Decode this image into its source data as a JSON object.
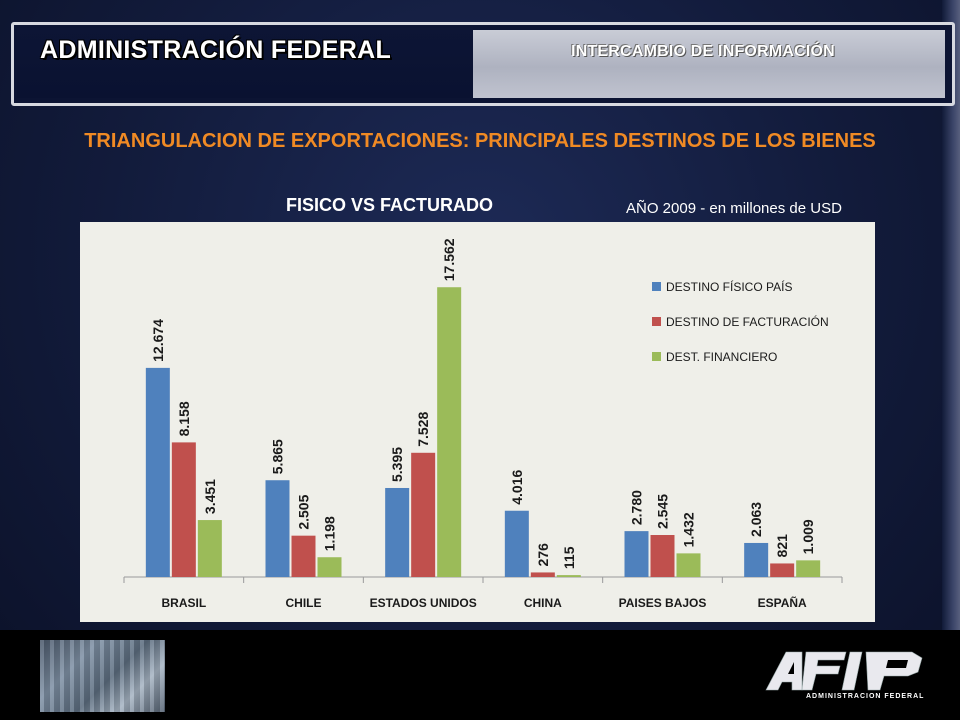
{
  "header": {
    "brand_title": "ADMINISTRACIÓN FEDERAL",
    "tab_label": "INTERCAMBIO DE INFORMACIÓN"
  },
  "page": {
    "title": "TRIANGULACION DE EXPORTACIONES: PRINCIPALES DESTINOS DE LOS BIENES",
    "chart_subtitle": "FISICO VS FACTURADO",
    "unit_note": "AÑO 2009 - en millones de USD"
  },
  "footer": {
    "logo_caption": "ADMINISTRACION FEDERAL"
  },
  "colors": {
    "series_blue": "#4f81bd",
    "series_red": "#c0504d",
    "series_green": "#9bbb59",
    "title_orange": "#f08a24"
  },
  "chart_data": {
    "type": "bar",
    "title": "FISICO VS FACTURADO",
    "categories": [
      "BRASIL",
      "CHILE",
      "ESTADOS UNIDOS",
      "CHINA",
      "PAISES BAJOS",
      "ESPAÑA"
    ],
    "series": [
      {
        "name": "DESTINO FÍSICO PAÍS",
        "color": "#4f81bd",
        "values": [
          12674,
          5865,
          5395,
          4016,
          2780,
          2063
        ],
        "labels": [
          "12.674",
          "5.865",
          "5.395",
          "4.016",
          "2.780",
          "2.063"
        ]
      },
      {
        "name": "DESTINO DE FACTURACIÓN",
        "color": "#c0504d",
        "values": [
          8158,
          2505,
          7528,
          276,
          2545,
          821
        ],
        "labels": [
          "8.158",
          "2.505",
          "7.528",
          "276",
          "2.545",
          "821"
        ]
      },
      {
        "name": "DEST. FINANCIERO",
        "color": "#9bbb59",
        "values": [
          3451,
          1198,
          17562,
          115,
          1432,
          1009
        ],
        "labels": [
          "3.451",
          "1.198",
          "17.562",
          "115",
          "1.432",
          "1.009"
        ]
      }
    ],
    "ylim": [
      0,
      18000
    ],
    "grid": false,
    "legend_position": "top-right",
    "xlabel": "",
    "ylabel": ""
  }
}
